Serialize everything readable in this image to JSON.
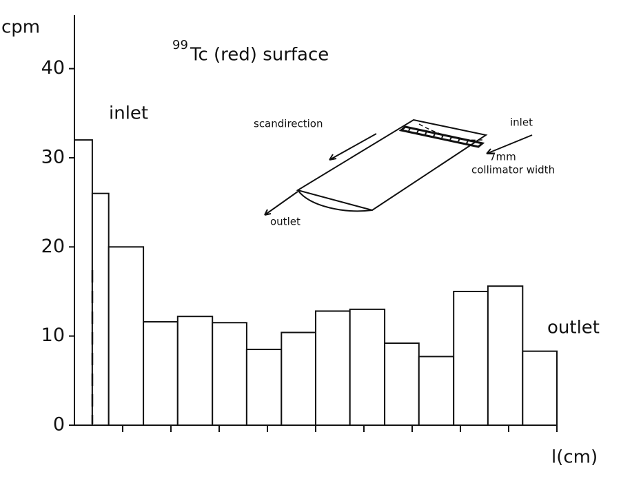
{
  "chart_data": {
    "type": "histogram",
    "title": {
      "sup": "99",
      "text": "Tc (red)  surface"
    },
    "y_label": "cpm",
    "x_label": "l(cm)",
    "bins": [
      0,
      0.37,
      0.71,
      1.43,
      2.14,
      2.86,
      3.57,
      4.29,
      5,
      5.71,
      6.43,
      7.14,
      7.86,
      8.57,
      9.29,
      10
    ],
    "values": [
      32,
      26,
      20,
      11.6,
      12.2,
      11.5,
      8.5,
      10.4,
      12.8,
      13,
      9.2,
      7.7,
      15,
      15.6,
      8.3
    ],
    "color": "#ffffff",
    "xlim": [
      0,
      10
    ],
    "ylim": [
      0,
      46
    ],
    "yticks": [
      0,
      10,
      20,
      30,
      40
    ],
    "annotations": {
      "inlet": "inlet",
      "outlet": "outlet",
      "diagram": {
        "scan": "scandirection",
        "inlet": "inlet",
        "width": "7mm",
        "collimator": "collimator width",
        "outlet": "outlet"
      }
    }
  }
}
